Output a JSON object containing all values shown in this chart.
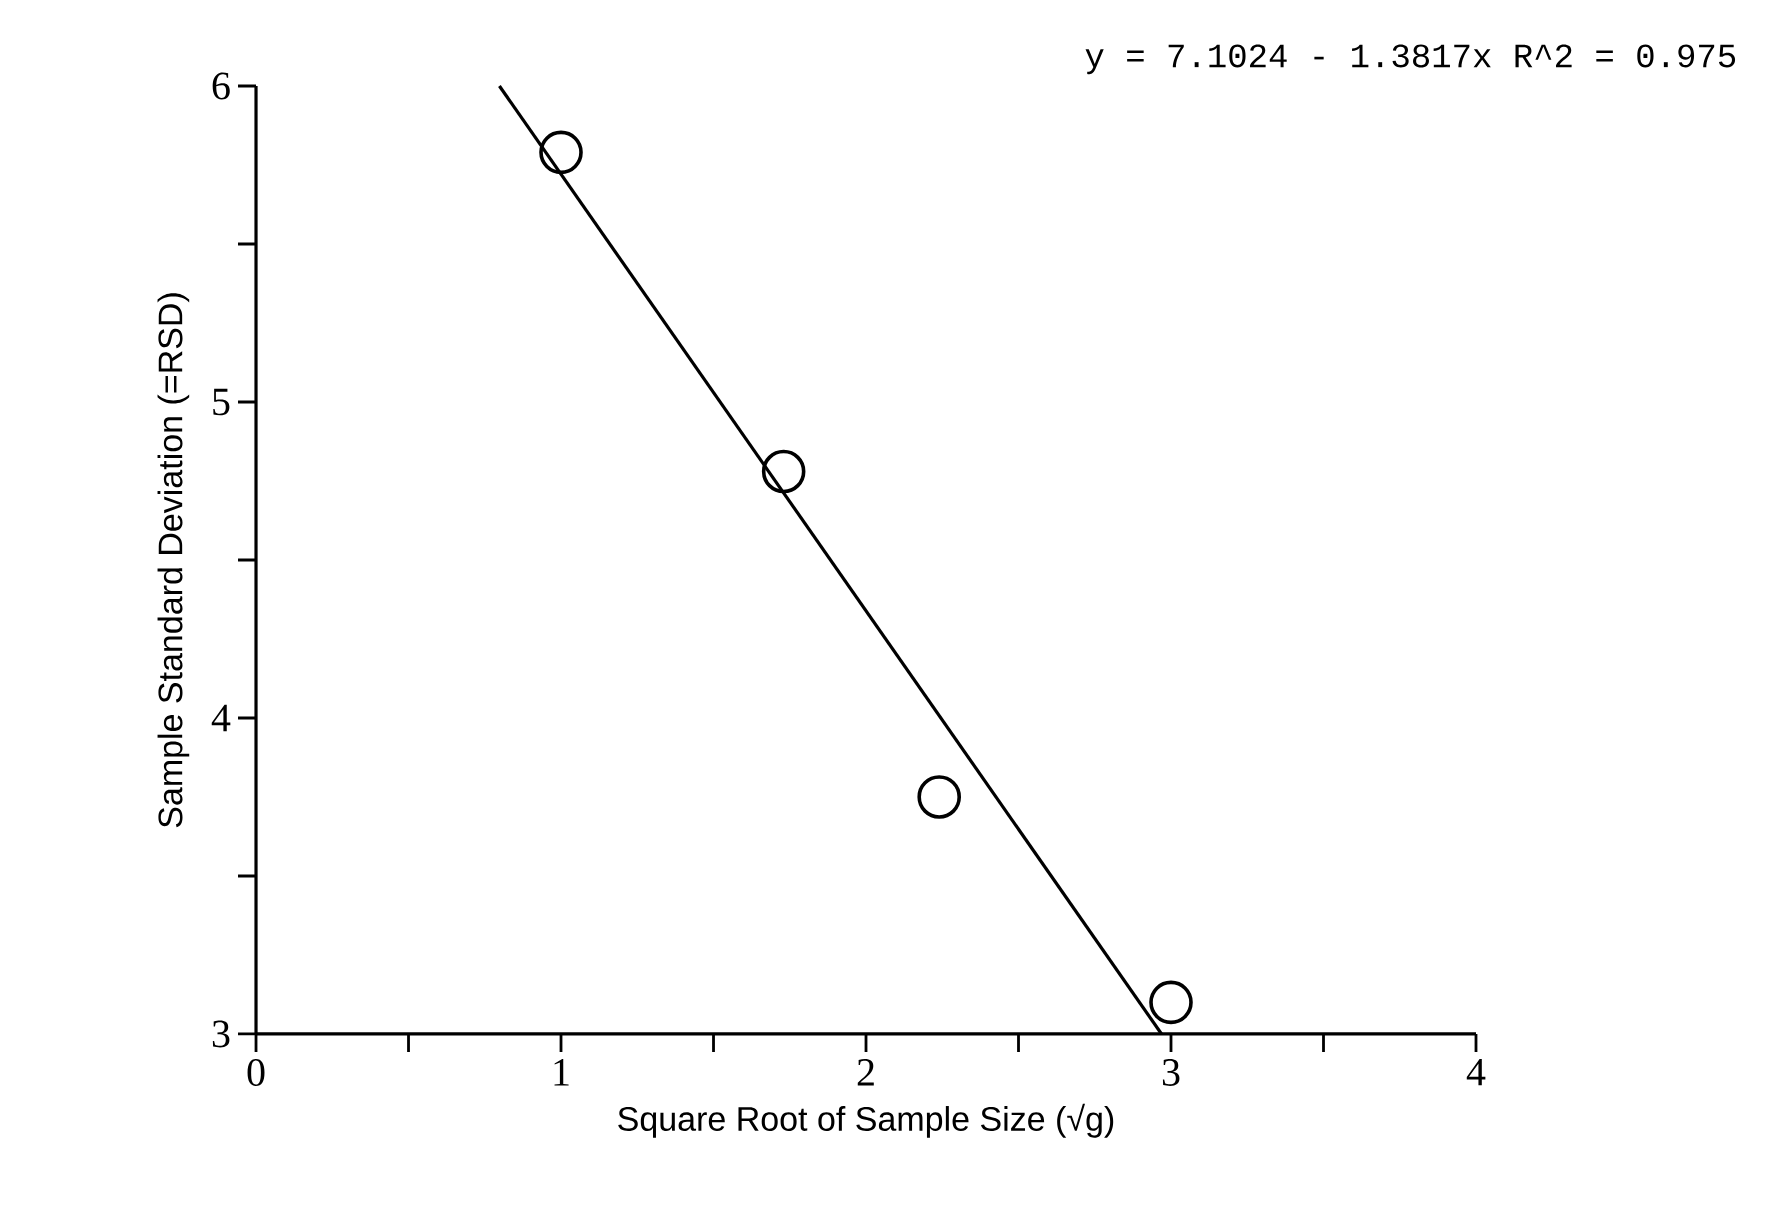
{
  "chart_data": {
    "type": "scatter",
    "xlabel": "Square Root of Sample Size (√g)",
    "ylabel": "Sample Standard Deviation (=RSD)",
    "annotations": [
      "y = 7.1024 - 1.3817x    R^2 = 0.975"
    ],
    "xlim": [
      0,
      4
    ],
    "ylim": [
      3,
      6
    ],
    "xticks": [
      0,
      {
        "value": 0.5,
        "label": null
      },
      1,
      {
        "value": 1.5,
        "label": null
      },
      2,
      {
        "value": 2.5,
        "label": null
      },
      3,
      {
        "value": 3.5,
        "label": null
      },
      4
    ],
    "yticks": [
      3,
      {
        "value": 3.5,
        "label": null
      },
      4,
      {
        "value": 4.5,
        "label": null
      },
      5,
      {
        "value": 5.5,
        "label": null
      },
      6
    ],
    "series": [
      {
        "marker": "circle",
        "color": "#000000",
        "x": [
          1,
          1.73,
          2.24,
          3
        ],
        "values": [
          5.79,
          4.78,
          3.75,
          3.1
        ]
      },
      {
        "type": "line",
        "marker": "none",
        "line_style": "solid",
        "color": "#000000",
        "x": [
          0.798,
          2.969
        ],
        "values": [
          6,
          3
        ]
      }
    ]
  }
}
